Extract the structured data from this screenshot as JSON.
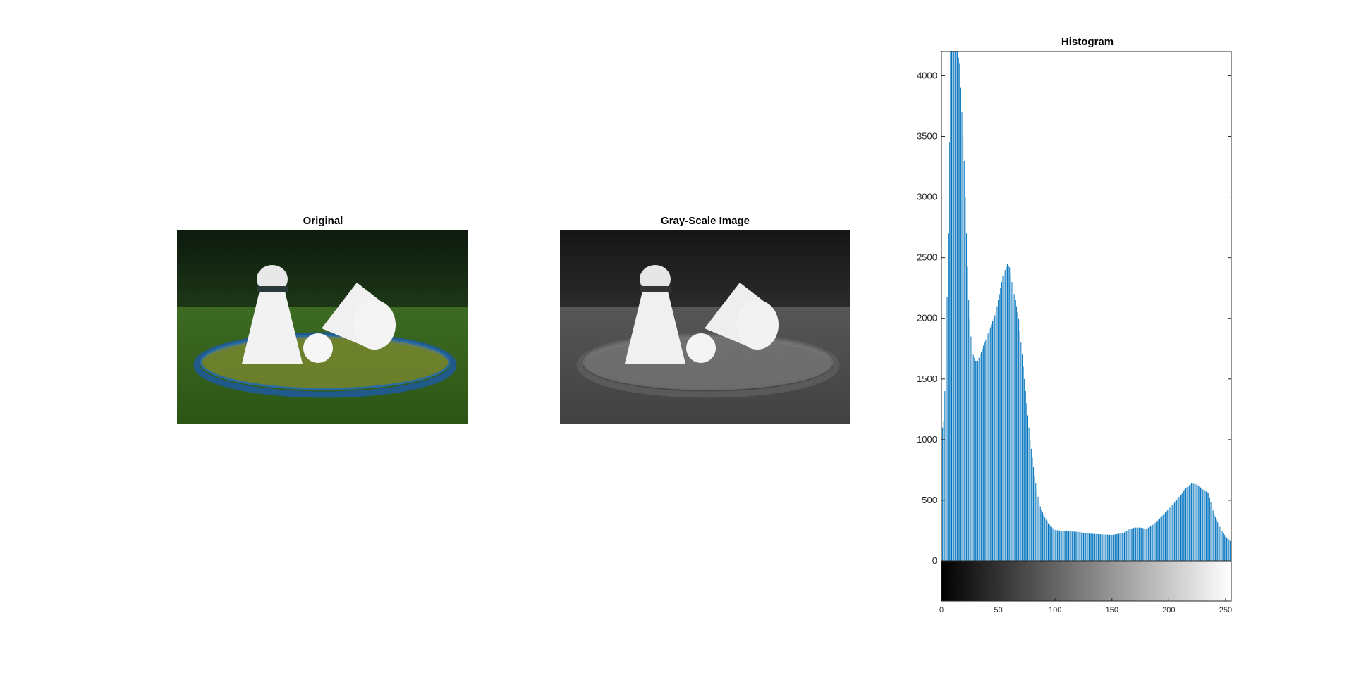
{
  "panels": {
    "original": {
      "title": "Original",
      "image": "badminton-shuttlecocks-on-racket-color-photo"
    },
    "gray": {
      "title": "Gray-Scale Image",
      "image": "badminton-shuttlecocks-on-racket-grayscale-photo"
    }
  },
  "chart_data": {
    "type": "bar",
    "title": "Histogram",
    "xlabel": "",
    "ylabel": "",
    "xlim": [
      0,
      255
    ],
    "ylim": [
      0,
      4200
    ],
    "x_ticks": [
      0,
      50,
      100,
      150,
      200,
      250
    ],
    "y_ticks": [
      0,
      500,
      1000,
      1500,
      2000,
      2500,
      3000,
      3500,
      4000
    ],
    "bar_color": "#0072BD",
    "colorbar": "grayscale 0-255 beneath x-axis",
    "grid": false,
    "legend": "none",
    "profile_points": [
      [
        0,
        1050
      ],
      [
        2,
        1150
      ],
      [
        4,
        1650
      ],
      [
        6,
        2700
      ],
      [
        8,
        4200
      ],
      [
        10,
        4200
      ],
      [
        12,
        4200
      ],
      [
        14,
        4200
      ],
      [
        16,
        4100
      ],
      [
        18,
        3700
      ],
      [
        20,
        3300
      ],
      [
        22,
        2700
      ],
      [
        24,
        2150
      ],
      [
        26,
        1850
      ],
      [
        28,
        1700
      ],
      [
        30,
        1650
      ],
      [
        32,
        1650
      ],
      [
        34,
        1700
      ],
      [
        36,
        1750
      ],
      [
        38,
        1800
      ],
      [
        40,
        1850
      ],
      [
        42,
        1900
      ],
      [
        44,
        1950
      ],
      [
        46,
        2000
      ],
      [
        48,
        2050
      ],
      [
        50,
        2150
      ],
      [
        52,
        2250
      ],
      [
        54,
        2350
      ],
      [
        56,
        2400
      ],
      [
        58,
        2450
      ],
      [
        60,
        2420
      ],
      [
        62,
        2300
      ],
      [
        64,
        2200
      ],
      [
        66,
        2100
      ],
      [
        68,
        2000
      ],
      [
        70,
        1800
      ],
      [
        72,
        1600
      ],
      [
        74,
        1400
      ],
      [
        76,
        1200
      ],
      [
        78,
        1000
      ],
      [
        80,
        850
      ],
      [
        82,
        700
      ],
      [
        84,
        580
      ],
      [
        86,
        480
      ],
      [
        88,
        420
      ],
      [
        90,
        380
      ],
      [
        92,
        340
      ],
      [
        94,
        310
      ],
      [
        96,
        290
      ],
      [
        98,
        270
      ],
      [
        100,
        255
      ],
      [
        110,
        245
      ],
      [
        120,
        240
      ],
      [
        130,
        225
      ],
      [
        140,
        220
      ],
      [
        150,
        215
      ],
      [
        160,
        230
      ],
      [
        165,
        260
      ],
      [
        170,
        275
      ],
      [
        175,
        275
      ],
      [
        180,
        265
      ],
      [
        185,
        290
      ],
      [
        190,
        330
      ],
      [
        195,
        380
      ],
      [
        200,
        430
      ],
      [
        205,
        480
      ],
      [
        210,
        540
      ],
      [
        215,
        600
      ],
      [
        220,
        640
      ],
      [
        225,
        630
      ],
      [
        230,
        590
      ],
      [
        235,
        560
      ],
      [
        240,
        380
      ],
      [
        245,
        280
      ],
      [
        250,
        200
      ],
      [
        254,
        170
      ],
      [
        255,
        310
      ]
    ]
  }
}
